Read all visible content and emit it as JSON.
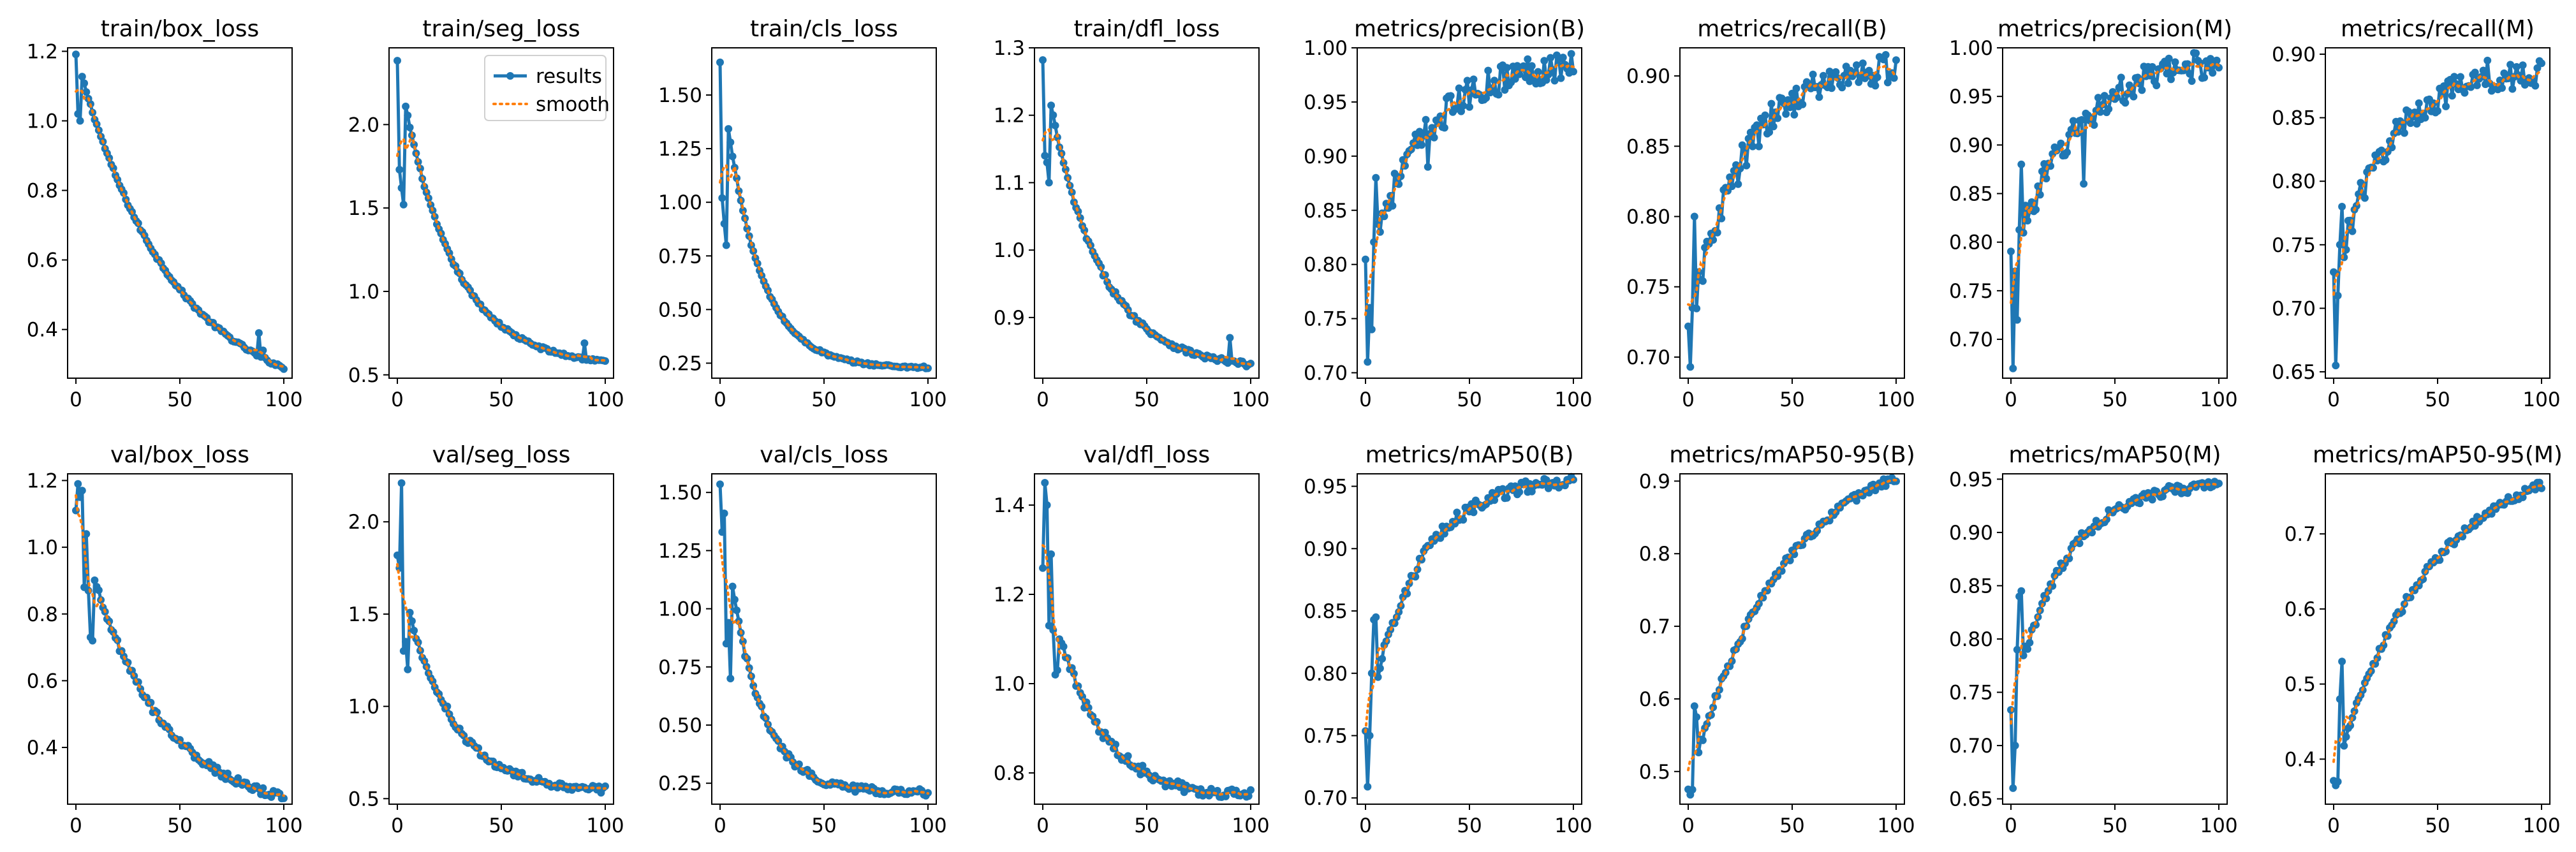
{
  "colors": {
    "results": "#1f77b4",
    "smooth": "#ff7f0e",
    "axis": "#000000",
    "background": "#ffffff"
  },
  "legend": {
    "results_label": "results",
    "smooth_label": "smooth",
    "panel_index": 1,
    "position": "top-right"
  },
  "epochs": 100,
  "chart_data": [
    {
      "type": "line",
      "title": "train/box_loss",
      "ylim": [
        0.26,
        1.21
      ],
      "yticks": [
        0.4,
        0.6,
        0.8,
        1.0,
        1.2
      ],
      "ytick_labels": [
        "0.4",
        "0.6",
        "0.8",
        "1.0",
        "1.2"
      ],
      "xticks": [
        0,
        50,
        100
      ],
      "xtick_labels": [
        "0",
        "50",
        "100"
      ],
      "start": 1.19,
      "end": 0.29,
      "shape": "decay",
      "k": 2.2,
      "noise": 0.005,
      "outliers": [
        [
          1,
          1.02
        ],
        [
          2,
          1.0
        ],
        [
          88,
          0.39
        ],
        [
          90,
          0.34
        ]
      ]
    },
    {
      "type": "line",
      "title": "train/seg_loss",
      "ylim": [
        0.48,
        2.46
      ],
      "yticks": [
        0.5,
        1.0,
        1.5,
        2.0
      ],
      "ytick_labels": [
        "0.5",
        "1.0",
        "1.5",
        "2.0"
      ],
      "xticks": [
        0,
        50,
        100
      ],
      "xtick_labels": [
        "0",
        "50",
        "100"
      ],
      "start": 2.38,
      "end": 0.58,
      "shape": "decay",
      "k": 4.0,
      "noise": 0.01,
      "outliers": [
        [
          1,
          1.73
        ],
        [
          2,
          1.62
        ],
        [
          3,
          1.52
        ],
        [
          90,
          0.69
        ]
      ]
    },
    {
      "type": "line",
      "title": "train/cls_loss",
      "ylim": [
        0.18,
        1.72
      ],
      "yticks": [
        0.25,
        0.5,
        0.75,
        1.0,
        1.25,
        1.5
      ],
      "ytick_labels": [
        "0.25",
        "0.50",
        "0.75",
        "1.00",
        "1.25",
        "1.50"
      ],
      "xticks": [
        0,
        50,
        100
      ],
      "xtick_labels": [
        "0",
        "50",
        "100"
      ],
      "start": 1.65,
      "end": 0.23,
      "shape": "decay",
      "k": 6.0,
      "noise": 0.006,
      "outliers": [
        [
          1,
          1.02
        ],
        [
          2,
          0.9
        ],
        [
          3,
          0.8
        ]
      ]
    },
    {
      "type": "line",
      "title": "train/dfl_loss",
      "ylim": [
        0.81,
        1.3
      ],
      "yticks": [
        0.9,
        1.0,
        1.1,
        1.2,
        1.3
      ],
      "ytick_labels": [
        "0.9",
        "1.0",
        "1.1",
        "1.2",
        "1.3"
      ],
      "xticks": [
        0,
        50,
        100
      ],
      "xtick_labels": [
        "0",
        "50",
        "100"
      ],
      "start": 1.28,
      "end": 0.83,
      "shape": "decay",
      "k": 4.0,
      "noise": 0.004,
      "outliers": [
        [
          1,
          1.14
        ],
        [
          2,
          1.13
        ],
        [
          3,
          1.1
        ],
        [
          90,
          0.87
        ]
      ]
    },
    {
      "type": "line",
      "title": "metrics/precision(B)",
      "ylim": [
        0.695,
        1.0
      ],
      "yticks": [
        0.7,
        0.75,
        0.8,
        0.85,
        0.9,
        0.95,
        1.0
      ],
      "ytick_labels": [
        "0.70",
        "0.75",
        "0.80",
        "0.85",
        "0.90",
        "0.95",
        "1.00"
      ],
      "xticks": [
        0,
        50,
        100
      ],
      "xtick_labels": [
        "0",
        "50",
        "100"
      ],
      "start": 0.797,
      "end": 0.985,
      "shape": "rise",
      "k": 3.5,
      "noise": 0.014,
      "outliers": [
        [
          1,
          0.71
        ],
        [
          2,
          0.76
        ],
        [
          3,
          0.74
        ],
        [
          5,
          0.88
        ],
        [
          7,
          0.83
        ],
        [
          30,
          0.89
        ]
      ]
    },
    {
      "type": "line",
      "title": "metrics/recall(B)",
      "ylim": [
        0.685,
        0.92
      ],
      "yticks": [
        0.7,
        0.75,
        0.8,
        0.85,
        0.9
      ],
      "ytick_labels": [
        "0.70",
        "0.75",
        "0.80",
        "0.85",
        "0.90"
      ],
      "xticks": [
        0,
        50,
        100
      ],
      "xtick_labels": [
        "0",
        "50",
        "100"
      ],
      "start": 0.715,
      "end": 0.905,
      "shape": "rise",
      "k": 4.0,
      "noise": 0.011,
      "outliers": [
        [
          1,
          0.693
        ],
        [
          2,
          0.735
        ],
        [
          3,
          0.8
        ],
        [
          24,
          0.823
        ],
        [
          95,
          0.915
        ]
      ]
    },
    {
      "type": "line",
      "title": "metrics/precision(M)",
      "ylim": [
        0.66,
        1.0
      ],
      "yticks": [
        0.7,
        0.75,
        0.8,
        0.85,
        0.9,
        0.95,
        1.0
      ],
      "ytick_labels": [
        "0.70",
        "0.75",
        "0.80",
        "0.85",
        "0.90",
        "0.95",
        "1.00"
      ],
      "xticks": [
        0,
        50,
        100
      ],
      "xtick_labels": [
        "0",
        "50",
        "100"
      ],
      "start": 0.78,
      "end": 0.985,
      "shape": "rise",
      "k": 3.2,
      "noise": 0.015,
      "outliers": [
        [
          1,
          0.67
        ],
        [
          2,
          0.77
        ],
        [
          3,
          0.72
        ],
        [
          5,
          0.88
        ],
        [
          35,
          0.86
        ]
      ]
    },
    {
      "type": "line",
      "title": "metrics/recall(M)",
      "ylim": [
        0.645,
        0.905
      ],
      "yticks": [
        0.65,
        0.7,
        0.75,
        0.8,
        0.85,
        0.9
      ],
      "ytick_labels": [
        "0.65",
        "0.70",
        "0.75",
        "0.80",
        "0.85",
        "0.90"
      ],
      "xticks": [
        0,
        50,
        100
      ],
      "xtick_labels": [
        "0",
        "50",
        "100"
      ],
      "start": 0.72,
      "end": 0.885,
      "shape": "rise",
      "k": 4.0,
      "noise": 0.011,
      "outliers": [
        [
          1,
          0.655
        ],
        [
          2,
          0.71
        ],
        [
          3,
          0.75
        ],
        [
          4,
          0.78
        ],
        [
          74,
          0.895
        ]
      ]
    },
    {
      "type": "line",
      "title": "val/box_loss",
      "ylim": [
        0.23,
        1.22
      ],
      "yticks": [
        0.4,
        0.6,
        0.8,
        1.0,
        1.2
      ],
      "ytick_labels": [
        "0.4",
        "0.6",
        "0.8",
        "1.0",
        "1.2"
      ],
      "xticks": [
        0,
        50,
        100
      ],
      "xtick_labels": [
        "0",
        "50",
        "100"
      ],
      "start": 1.1,
      "end": 0.25,
      "shape": "decay",
      "k": 2.8,
      "noise": 0.012,
      "outliers": [
        [
          1,
          1.19
        ],
        [
          2,
          1.15
        ],
        [
          3,
          1.17
        ],
        [
          4,
          0.88
        ],
        [
          5,
          1.04
        ],
        [
          6,
          0.87
        ],
        [
          7,
          0.73
        ],
        [
          8,
          0.72
        ]
      ]
    },
    {
      "type": "line",
      "title": "val/seg_loss",
      "ylim": [
        0.47,
        2.26
      ],
      "yticks": [
        0.5,
        1.0,
        1.5,
        2.0
      ],
      "ytick_labels": [
        "0.5",
        "1.0",
        "1.5",
        "2.0"
      ],
      "xticks": [
        0,
        50,
        100
      ],
      "xtick_labels": [
        "0",
        "50",
        "100"
      ],
      "start": 1.8,
      "end": 0.55,
      "shape": "decay",
      "k": 4.5,
      "noise": 0.02,
      "outliers": [
        [
          1,
          1.75
        ],
        [
          2,
          2.21
        ],
        [
          3,
          1.3
        ],
        [
          4,
          1.35
        ],
        [
          5,
          1.2
        ],
        [
          24,
          1.0
        ]
      ]
    },
    {
      "type": "line",
      "title": "val/cls_loss",
      "ylim": [
        0.16,
        1.58
      ],
      "yticks": [
        0.25,
        0.5,
        0.75,
        1.0,
        1.25,
        1.5
      ],
      "ytick_labels": [
        "0.25",
        "0.50",
        "0.75",
        "1.00",
        "1.25",
        "1.50"
      ],
      "xticks": [
        0,
        50,
        100
      ],
      "xtick_labels": [
        "0",
        "50",
        "100"
      ],
      "start": 1.52,
      "end": 0.21,
      "shape": "decay",
      "k": 6.5,
      "noise": 0.015,
      "outliers": [
        [
          1,
          1.33
        ],
        [
          2,
          1.41
        ],
        [
          3,
          0.85
        ],
        [
          4,
          0.94
        ],
        [
          5,
          0.7
        ]
      ]
    },
    {
      "type": "line",
      "title": "val/dfl_loss",
      "ylim": [
        0.73,
        1.47
      ],
      "yticks": [
        0.8,
        1.0,
        1.2,
        1.4
      ],
      "ytick_labels": [
        "0.8",
        "1.0",
        "1.2",
        "1.4"
      ],
      "xticks": [
        0,
        50,
        100
      ],
      "xtick_labels": [
        "0",
        "50",
        "100"
      ],
      "start": 1.27,
      "end": 0.75,
      "shape": "decay",
      "k": 4.5,
      "noise": 0.012,
      "outliers": [
        [
          1,
          1.45
        ],
        [
          2,
          1.4
        ],
        [
          3,
          1.13
        ],
        [
          4,
          1.29
        ],
        [
          5,
          1.12
        ],
        [
          6,
          1.02
        ],
        [
          7,
          1.03
        ]
      ]
    },
    {
      "type": "line",
      "title": "metrics/mAP50(B)",
      "ylim": [
        0.695,
        0.96
      ],
      "yticks": [
        0.7,
        0.75,
        0.8,
        0.85,
        0.9,
        0.95
      ],
      "ytick_labels": [
        "0.70",
        "0.75",
        "0.80",
        "0.85",
        "0.90",
        "0.95"
      ],
      "xticks": [
        0,
        50,
        100
      ],
      "xtick_labels": [
        "0",
        "50",
        "100"
      ],
      "start": 0.758,
      "end": 0.955,
      "shape": "rise",
      "k": 4.0,
      "noise": 0.005,
      "outliers": [
        [
          1,
          0.709
        ],
        [
          2,
          0.75
        ],
        [
          3,
          0.8
        ],
        [
          4,
          0.843
        ],
        [
          5,
          0.845
        ]
      ]
    },
    {
      "type": "line",
      "title": "metrics/mAP50-95(B)",
      "ylim": [
        0.455,
        0.91
      ],
      "yticks": [
        0.5,
        0.6,
        0.7,
        0.8,
        0.9
      ],
      "ytick_labels": [
        "0.5",
        "0.6",
        "0.7",
        "0.8",
        "0.9"
      ],
      "xticks": [
        0,
        50,
        100
      ],
      "xtick_labels": [
        "0",
        "50",
        "100"
      ],
      "start": 0.48,
      "end": 0.905,
      "shape": "rise",
      "k": 2.2,
      "noise": 0.006,
      "outliers": [
        [
          1,
          0.468
        ],
        [
          2,
          0.475
        ],
        [
          3,
          0.59
        ],
        [
          4,
          0.575
        ]
      ]
    },
    {
      "type": "line",
      "title": "metrics/mAP50(M)",
      "ylim": [
        0.645,
        0.955
      ],
      "yticks": [
        0.65,
        0.7,
        0.75,
        0.8,
        0.85,
        0.9,
        0.95
      ],
      "ytick_labels": [
        "0.65",
        "0.70",
        "0.75",
        "0.80",
        "0.85",
        "0.90",
        "0.95"
      ],
      "xticks": [
        0,
        50,
        100
      ],
      "xtick_labels": [
        "0",
        "50",
        "100"
      ],
      "start": 0.737,
      "end": 0.945,
      "shape": "rise",
      "k": 4.0,
      "noise": 0.005,
      "outliers": [
        [
          1,
          0.66
        ],
        [
          2,
          0.7
        ],
        [
          3,
          0.79
        ],
        [
          4,
          0.84
        ],
        [
          5,
          0.845
        ]
      ]
    },
    {
      "type": "line",
      "title": "metrics/mAP50-95(M)",
      "ylim": [
        0.34,
        0.78
      ],
      "yticks": [
        0.4,
        0.5,
        0.6,
        0.7
      ],
      "ytick_labels": [
        "0.4",
        "0.5",
        "0.6",
        "0.7"
      ],
      "xticks": [
        0,
        50,
        100
      ],
      "xtick_labels": [
        "0",
        "50",
        "100"
      ],
      "start": 0.375,
      "end": 0.765,
      "shape": "rise",
      "k": 2.2,
      "noise": 0.006,
      "outliers": [
        [
          1,
          0.365
        ],
        [
          2,
          0.37
        ],
        [
          3,
          0.48
        ],
        [
          4,
          0.53
        ]
      ]
    }
  ]
}
